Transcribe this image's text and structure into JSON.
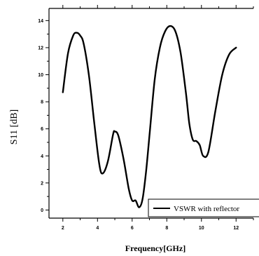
{
  "chart_data": {
    "type": "line",
    "title": "",
    "xlabel": "Frequency[GHz]",
    "ylabel": "S11 [dB]",
    "xlim": [
      1.2,
      13.0
    ],
    "ylim": [
      -0.6,
      14.9
    ],
    "xticks": [
      2,
      4,
      6,
      8,
      10,
      12
    ],
    "yticks": [
      0,
      2,
      4,
      6,
      8,
      10,
      12,
      14
    ],
    "grid": false,
    "legend_position": "bottom-right",
    "series": [
      {
        "name": "VSWR with reflector",
        "color": "#000000",
        "x": [
          2.0,
          2.3,
          2.6,
          2.8,
          3.0,
          3.2,
          3.5,
          3.8,
          4.1,
          4.3,
          4.6,
          4.9,
          5.0,
          5.2,
          5.5,
          5.8,
          6.0,
          6.2,
          6.4,
          6.6,
          6.8,
          7.0,
          7.3,
          7.6,
          7.9,
          8.2,
          8.5,
          8.8,
          9.1,
          9.3,
          9.5,
          9.7,
          9.9,
          10.1,
          10.4,
          10.8,
          11.2,
          11.6,
          12.0
        ],
        "y": [
          8.7,
          11.6,
          12.9,
          13.1,
          12.9,
          12.3,
          10.0,
          6.6,
          3.4,
          2.7,
          3.6,
          5.6,
          5.8,
          5.5,
          3.8,
          1.6,
          0.7,
          0.7,
          0.2,
          0.8,
          2.8,
          5.5,
          9.6,
          12.0,
          13.2,
          13.6,
          13.2,
          11.6,
          8.7,
          6.4,
          5.2,
          5.1,
          4.8,
          4.0,
          4.3,
          7.3,
          10.0,
          11.5,
          12.0
        ]
      }
    ]
  }
}
